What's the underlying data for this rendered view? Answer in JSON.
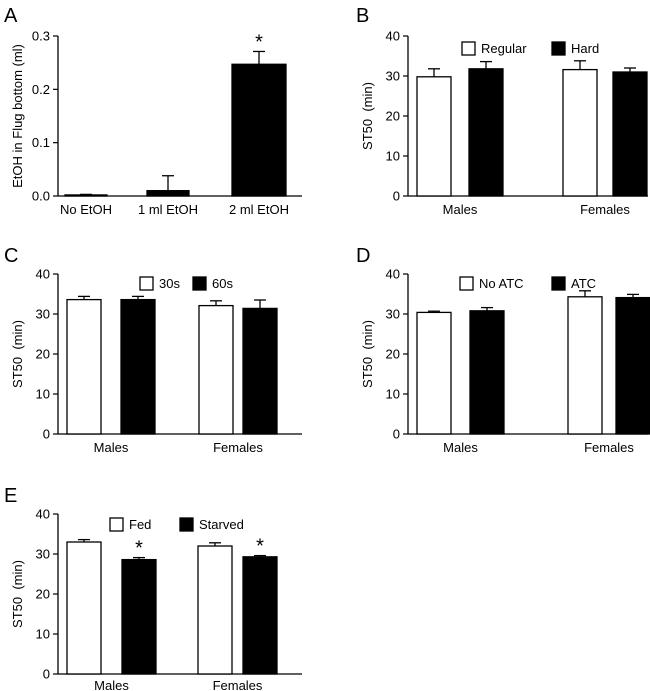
{
  "chart_data": [
    {
      "panel": "A",
      "type": "bar",
      "title": "",
      "xlabel": "",
      "ylabel": "EtOH in Flug bottom (ml)",
      "ylim": [
        0,
        0.3
      ],
      "yticks": [
        "0.0",
        "0.1",
        "0.2",
        "0.3"
      ],
      "categories": [
        "No EtOH",
        "1 ml EtOH",
        "2 ml EtOH"
      ],
      "series": [
        {
          "name": "",
          "fill": "black",
          "values": [
            0.002,
            0.01,
            0.247
          ],
          "errors": [
            0.001,
            0.028,
            0.024
          ],
          "significant": [
            false,
            false,
            true
          ]
        }
      ],
      "legend": []
    },
    {
      "panel": "B",
      "type": "bar",
      "title": "",
      "xlabel": "",
      "ylabel": "ST50  (min)",
      "ylim": [
        0,
        40
      ],
      "yticks": [
        "0",
        "10",
        "20",
        "30",
        "40"
      ],
      "categories": [
        "Males",
        "Females"
      ],
      "series": [
        {
          "name": "Regular",
          "fill": "white",
          "values": [
            29.8,
            31.6
          ],
          "errors": [
            2.0,
            2.2
          ],
          "significant": [
            false,
            false
          ]
        },
        {
          "name": "Hard",
          "fill": "black",
          "values": [
            31.8,
            31.0
          ],
          "errors": [
            1.8,
            1.0
          ],
          "significant": [
            false,
            false
          ]
        }
      ],
      "legend": [
        "Regular",
        "Hard"
      ]
    },
    {
      "panel": "C",
      "type": "bar",
      "title": "",
      "xlabel": "",
      "ylabel": "ST50  (min)",
      "ylim": [
        0,
        40
      ],
      "yticks": [
        "0",
        "10",
        "20",
        "30",
        "40"
      ],
      "categories": [
        "Males",
        "Females"
      ],
      "series": [
        {
          "name": "30s",
          "fill": "white",
          "values": [
            33.6,
            32.1
          ],
          "errors": [
            0.8,
            1.2
          ],
          "significant": [
            false,
            false
          ]
        },
        {
          "name": "60s",
          "fill": "black",
          "values": [
            33.6,
            31.4
          ],
          "errors": [
            0.8,
            2.1
          ],
          "significant": [
            false,
            false
          ]
        }
      ],
      "legend": [
        "30s",
        "60s"
      ]
    },
    {
      "panel": "D",
      "type": "bar",
      "title": "",
      "xlabel": "",
      "ylabel": "ST50  (min)",
      "ylim": [
        0,
        40
      ],
      "yticks": [
        "0",
        "10",
        "20",
        "30",
        "40"
      ],
      "categories": [
        "Males",
        "Females"
      ],
      "series": [
        {
          "name": "No ATC",
          "fill": "white",
          "values": [
            30.4,
            34.3
          ],
          "errors": [
            0.3,
            1.5
          ],
          "significant": [
            false,
            false
          ]
        },
        {
          "name": "ATC",
          "fill": "black",
          "values": [
            30.8,
            34.1
          ],
          "errors": [
            0.8,
            0.8
          ],
          "significant": [
            false,
            false
          ]
        }
      ],
      "legend": [
        "No ATC",
        "ATC"
      ]
    },
    {
      "panel": "E",
      "type": "bar",
      "title": "",
      "xlabel": "",
      "ylabel": "ST50  (min)",
      "ylim": [
        0,
        40
      ],
      "yticks": [
        "0",
        "10",
        "20",
        "30",
        "40"
      ],
      "categories": [
        "Males",
        "Females"
      ],
      "series": [
        {
          "name": "Fed",
          "fill": "white",
          "values": [
            33.0,
            32.0
          ],
          "errors": [
            0.6,
            0.8
          ],
          "significant": [
            false,
            false
          ]
        },
        {
          "name": "Starved",
          "fill": "black",
          "values": [
            28.6,
            29.3
          ],
          "errors": [
            0.5,
            0.3
          ],
          "significant": [
            true,
            true
          ]
        }
      ],
      "legend": [
        "Fed",
        "Starved"
      ]
    }
  ],
  "significance_marker": "*"
}
